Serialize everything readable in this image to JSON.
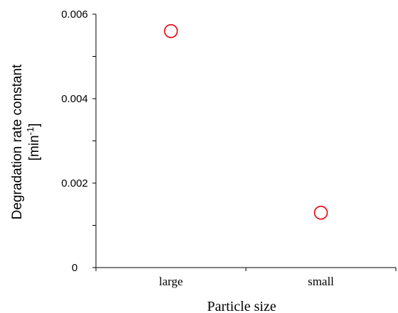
{
  "chart_data": {
    "type": "scatter",
    "title": "",
    "xlabel": "Particle size",
    "ylabel_line1": "Degradation rate constant",
    "ylabel_line2_prefix": "[min",
    "ylabel_line2_exp": "-1",
    "ylabel_line2_suffix": "]",
    "categories": [
      "large",
      "small"
    ],
    "series": [
      {
        "values": [
          0.0056,
          0.0013
        ]
      }
    ],
    "ylim": [
      0,
      0.006
    ],
    "yticks": [
      0,
      0.002,
      0.004,
      0.006
    ],
    "ytick_labels": [
      "0",
      "0.002",
      "0.004",
      "0.006"
    ],
    "grid": false,
    "marker": "open-circle",
    "marker_color": "#e8000b"
  }
}
